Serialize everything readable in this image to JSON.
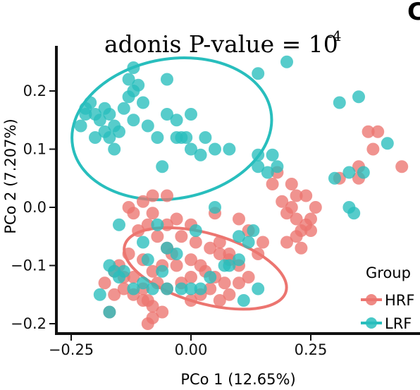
{
  "chart_data": {
    "type": "scatter",
    "panel_letter": "C",
    "annotation": {
      "base": "adonis P-value = 10",
      "exponent": "-4"
    },
    "xlabel": "PCo 1 (12.65%)",
    "ylabel": "PCo 2 (7.207%)",
    "xlim": [
      -0.33,
      0.47
    ],
    "ylim": [
      -0.225,
      0.26
    ],
    "x_ticks": [
      -0.25,
      0.0,
      0.25
    ],
    "x_tick_labels": [
      "−0.25",
      "0.00",
      "0.25"
    ],
    "y_ticks": [
      -0.2,
      -0.1,
      0.0,
      0.1,
      0.2
    ],
    "y_tick_labels": [
      "−0.2",
      "−0.1",
      "0.0",
      "0.1",
      "0.2"
    ],
    "grid": false,
    "legend": {
      "title": "Group",
      "placement": "bottom-right"
    },
    "series": [
      {
        "name": "HRF",
        "color": "#ec7570",
        "ellipse": {
          "cx": 0.03,
          "cy": -0.105,
          "rx": 0.175,
          "ry": 0.06,
          "angle_deg": 16
        },
        "points": [
          [
            -0.05,
            -0.03
          ],
          [
            -0.03,
            -0.02
          ],
          [
            0.0,
            -0.03
          ],
          [
            -0.08,
            -0.01
          ],
          [
            -0.12,
            -0.01
          ],
          [
            -0.13,
            0.0
          ],
          [
            -0.1,
            0.01
          ],
          [
            -0.08,
            0.02
          ],
          [
            -0.05,
            0.02
          ],
          [
            -0.09,
            -0.03
          ],
          [
            -0.11,
            -0.04
          ],
          [
            -0.07,
            -0.05
          ],
          [
            -0.05,
            -0.07
          ],
          [
            -0.02,
            -0.05
          ],
          [
            0.01,
            -0.06
          ],
          [
            0.04,
            -0.07
          ],
          [
            0.06,
            -0.06
          ],
          [
            -0.04,
            -0.08
          ],
          [
            -0.1,
            -0.09
          ],
          [
            -0.13,
            -0.08
          ],
          [
            -0.15,
            -0.1
          ],
          [
            -0.14,
            -0.12
          ],
          [
            -0.16,
            -0.11
          ],
          [
            -0.12,
            -0.12
          ],
          [
            -0.08,
            -0.11
          ],
          [
            -0.06,
            -0.1
          ],
          [
            -0.03,
            -0.1
          ],
          [
            0.0,
            -0.09
          ],
          [
            0.02,
            -0.1
          ],
          [
            0.03,
            -0.11
          ],
          [
            0.0,
            -0.12
          ],
          [
            -0.02,
            -0.13
          ],
          [
            0.05,
            -0.12
          ],
          [
            0.07,
            -0.13
          ],
          [
            0.04,
            -0.14
          ],
          [
            0.02,
            -0.15
          ],
          [
            -0.05,
            -0.14
          ],
          [
            -0.07,
            -0.13
          ],
          [
            -0.1,
            -0.14
          ],
          [
            -0.12,
            -0.15
          ],
          [
            -0.14,
            -0.14
          ],
          [
            -0.1,
            -0.16
          ],
          [
            -0.08,
            -0.17
          ],
          [
            -0.06,
            -0.18
          ],
          [
            -0.08,
            -0.19
          ],
          [
            -0.09,
            -0.16
          ],
          [
            0.0,
            -0.16
          ],
          [
            0.06,
            -0.16
          ],
          [
            0.08,
            -0.15
          ],
          [
            0.1,
            -0.13
          ],
          [
            0.12,
            -0.12
          ],
          [
            0.1,
            -0.1
          ],
          [
            0.08,
            -0.09
          ],
          [
            0.08,
            -0.08
          ],
          [
            0.06,
            -0.08
          ],
          [
            -0.17,
            -0.18
          ],
          [
            -0.16,
            -0.15
          ],
          [
            -0.18,
            -0.13
          ],
          [
            0.14,
            -0.08
          ],
          [
            0.15,
            -0.06
          ],
          [
            0.2,
            -0.06
          ],
          [
            0.22,
            -0.05
          ],
          [
            0.23,
            -0.04
          ],
          [
            0.25,
            -0.04
          ],
          [
            0.24,
            -0.03
          ],
          [
            0.22,
            -0.02
          ],
          [
            0.2,
            -0.01
          ],
          [
            0.21,
            0.0
          ],
          [
            0.19,
            0.01
          ],
          [
            0.22,
            0.02
          ],
          [
            0.24,
            0.02
          ],
          [
            0.21,
            0.04
          ],
          [
            0.17,
            0.04
          ],
          [
            0.18,
            0.06
          ],
          [
            0.25,
            -0.02
          ],
          [
            0.26,
            0.0
          ],
          [
            0.23,
            -0.07
          ],
          [
            0.12,
            -0.04
          ],
          [
            0.1,
            -0.02
          ],
          [
            0.05,
            -0.01
          ],
          [
            0.37,
            0.13
          ],
          [
            0.39,
            0.13
          ],
          [
            0.38,
            0.1
          ],
          [
            0.35,
            0.07
          ],
          [
            0.44,
            0.07
          ],
          [
            0.35,
            0.05
          ],
          [
            0.31,
            0.05
          ],
          [
            -0.09,
            -0.2
          ]
        ]
      },
      {
        "name": "LRF",
        "color": "#28bebd",
        "ellipse": {
          "cx": -0.04,
          "cy": 0.135,
          "rx": 0.21,
          "ry": 0.12,
          "angle_deg": -10
        },
        "points": [
          [
            -0.22,
            0.17
          ],
          [
            -0.23,
            0.14
          ],
          [
            -0.21,
            0.18
          ],
          [
            -0.2,
            0.16
          ],
          [
            -0.19,
            0.15
          ],
          [
            -0.18,
            0.13
          ],
          [
            -0.17,
            0.16
          ],
          [
            -0.16,
            0.14
          ],
          [
            -0.17,
            0.12
          ],
          [
            -0.16,
            0.1
          ],
          [
            -0.15,
            0.13
          ],
          [
            -0.14,
            0.17
          ],
          [
            -0.13,
            0.19
          ],
          [
            -0.12,
            0.2
          ],
          [
            -0.13,
            0.22
          ],
          [
            -0.11,
            0.21
          ],
          [
            -0.12,
            0.15
          ],
          [
            -0.1,
            0.18
          ],
          [
            -0.09,
            0.14
          ],
          [
            -0.07,
            0.12
          ],
          [
            -0.05,
            0.16
          ],
          [
            -0.05,
            0.22
          ],
          [
            -0.03,
            0.15
          ],
          [
            -0.02,
            0.12
          ],
          [
            0.0,
            0.16
          ],
          [
            -0.01,
            0.12
          ],
          [
            0.02,
            0.09
          ],
          [
            0.03,
            0.12
          ],
          [
            0.05,
            0.1
          ],
          [
            0.08,
            0.1
          ],
          [
            -0.22,
            0.16
          ],
          [
            -0.18,
            0.17
          ],
          [
            -0.2,
            0.12
          ],
          [
            -0.06,
            0.07
          ],
          [
            0.0,
            0.1
          ],
          [
            -0.12,
            0.24
          ],
          [
            -0.03,
            0.12
          ],
          [
            -0.1,
            -0.06
          ],
          [
            -0.09,
            -0.09
          ],
          [
            -0.07,
            -0.03
          ],
          [
            -0.05,
            -0.07
          ],
          [
            -0.06,
            -0.11
          ],
          [
            -0.1,
            -0.13
          ],
          [
            -0.12,
            -0.14
          ],
          [
            -0.14,
            -0.11
          ],
          [
            -0.16,
            -0.11
          ],
          [
            -0.15,
            -0.12
          ],
          [
            -0.17,
            -0.1
          ],
          [
            -0.19,
            -0.15
          ],
          [
            -0.17,
            -0.18
          ],
          [
            -0.15,
            -0.03
          ],
          [
            -0.08,
            -0.14
          ],
          [
            -0.05,
            -0.14
          ],
          [
            -0.02,
            -0.14
          ],
          [
            0.0,
            -0.14
          ],
          [
            0.02,
            -0.14
          ],
          [
            0.04,
            -0.12
          ],
          [
            0.07,
            -0.1
          ],
          [
            0.08,
            -0.1
          ],
          [
            0.1,
            -0.09
          ],
          [
            0.13,
            -0.04
          ],
          [
            0.12,
            -0.06
          ],
          [
            0.14,
            -0.14
          ],
          [
            0.11,
            -0.16
          ],
          [
            0.05,
            0.0
          ],
          [
            0.14,
            0.07
          ],
          [
            0.16,
            0.06
          ],
          [
            0.17,
            0.09
          ],
          [
            0.14,
            0.09
          ],
          [
            0.18,
            0.07
          ],
          [
            0.14,
            0.23
          ],
          [
            0.2,
            0.25
          ],
          [
            0.31,
            0.18
          ],
          [
            0.35,
            0.19
          ],
          [
            0.41,
            0.11
          ],
          [
            0.33,
            0.06
          ],
          [
            0.33,
            0.0
          ],
          [
            0.34,
            -0.01
          ],
          [
            0.3,
            0.05
          ],
          [
            0.36,
            0.06
          ],
          [
            0.01,
            -0.04
          ],
          [
            -0.03,
            -0.08
          ],
          [
            0.1,
            -0.05
          ]
        ]
      }
    ]
  }
}
